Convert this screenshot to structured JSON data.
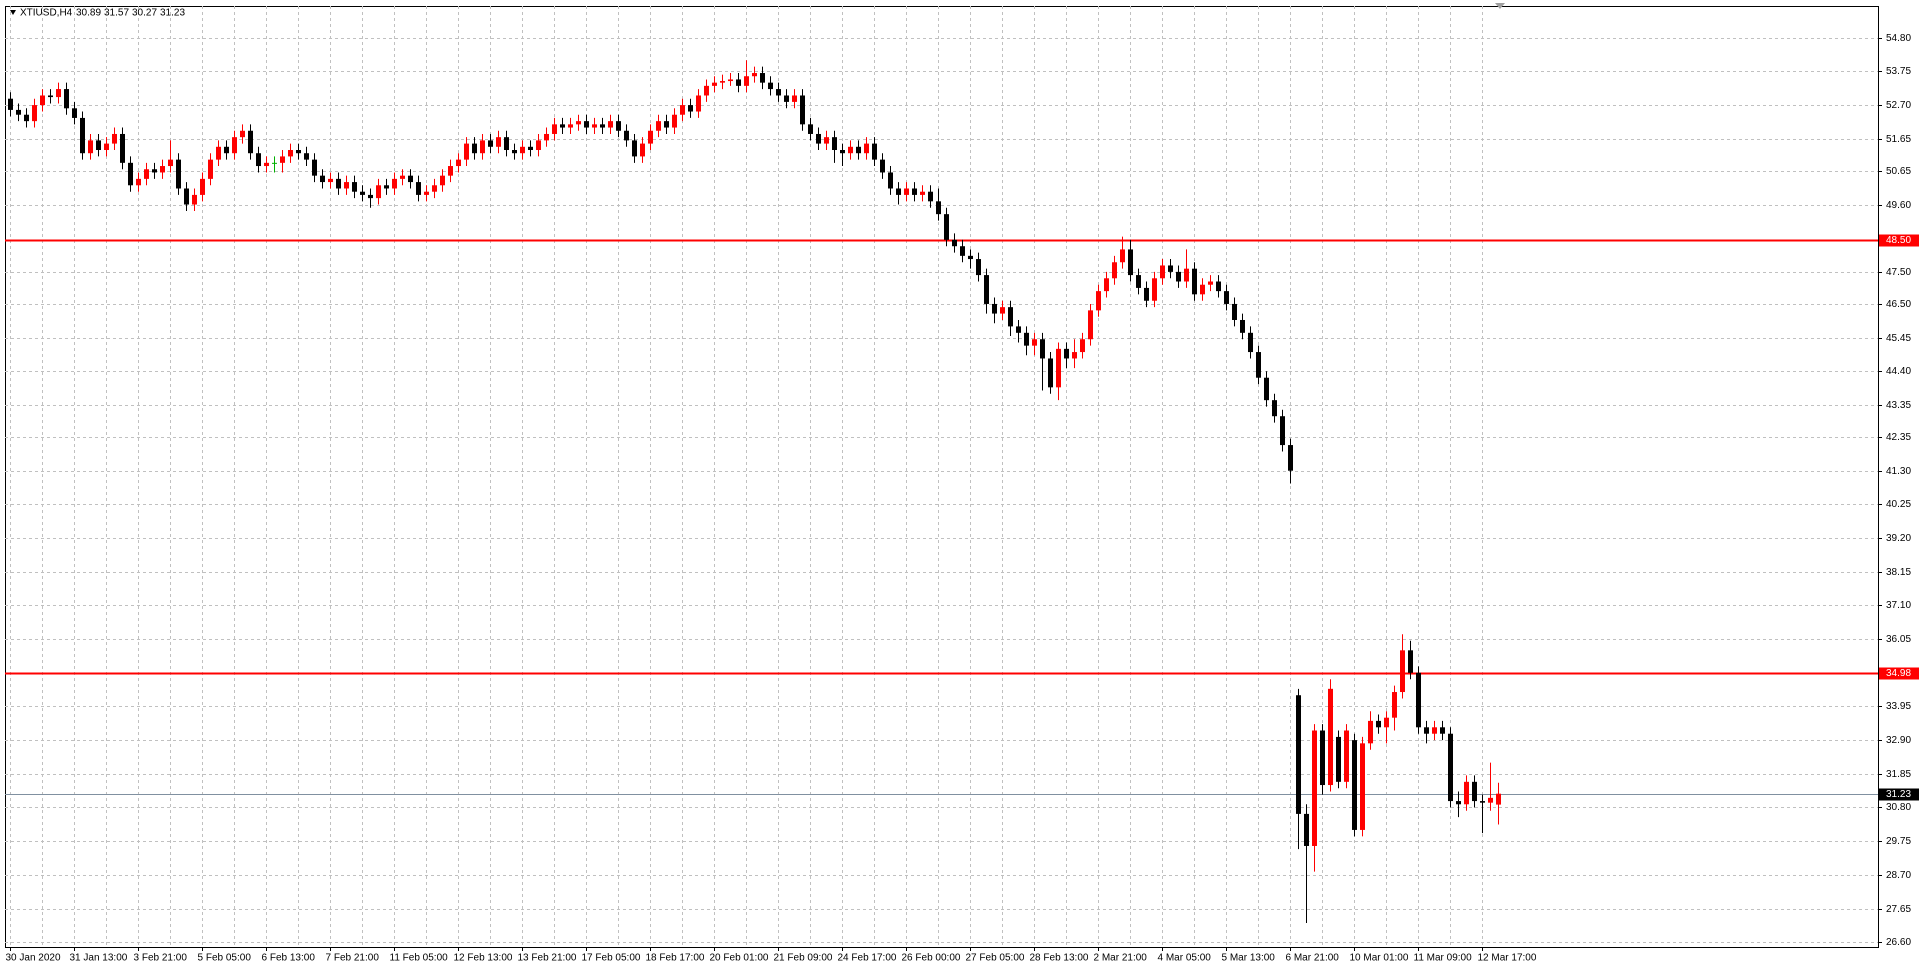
{
  "chart_data": {
    "type": "candlestick",
    "symbol": "XTIUSD,H4",
    "up_color": "#ff0000",
    "down_color": "#000000",
    "doji_color": "#00b000",
    "grid": true,
    "ylim": [
      26.45,
      55.79
    ],
    "yticks": [
      {
        "value": 54.8,
        "label": "54.80"
      },
      53.75,
      {
        "value": 52.7,
        "label": "52.70"
      },
      51.65,
      50.65,
      {
        "value": 49.6,
        "label": "49.60"
      },
      {
        "value": 47.5,
        "label": "47.50"
      },
      {
        "value": 46.5,
        "label": "46.50"
      },
      45.45,
      {
        "value": 44.4,
        "label": "44.40"
      },
      43.35,
      42.35,
      {
        "value": 41.3,
        "label": "41.30"
      },
      40.25,
      {
        "value": 39.2,
        "label": "39.20"
      },
      38.15,
      {
        "value": 37.1,
        "label": "37.10"
      },
      36.05,
      33.95,
      {
        "value": 32.9,
        "label": "32.90"
      },
      31.85,
      {
        "value": 30.8,
        "label": "30.80"
      },
      29.75,
      {
        "value": 28.7,
        "label": "28.70"
      },
      27.65,
      {
        "value": 26.6,
        "label": "26.60"
      }
    ],
    "levels": [
      {
        "value": 48.5,
        "label": "48.50",
        "color": "#ff0000"
      },
      {
        "value": 34.98,
        "label": "34.98",
        "color": "#ff0000"
      }
    ],
    "categories": [
      "30 Jan 2020",
      null,
      null,
      null,
      null,
      null,
      null,
      null,
      "31 Jan 13:00",
      null,
      null,
      null,
      null,
      null,
      null,
      null,
      "3 Feb 21:00",
      null,
      null,
      null,
      null,
      null,
      null,
      null,
      "5 Feb 05:00",
      null,
      null,
      null,
      null,
      null,
      null,
      null,
      "6 Feb 13:00",
      null,
      null,
      null,
      null,
      null,
      null,
      null,
      "7 Feb 21:00",
      null,
      null,
      null,
      null,
      null,
      null,
      null,
      "11 Feb 05:00",
      null,
      null,
      null,
      null,
      null,
      null,
      null,
      "12 Feb 13:00",
      null,
      null,
      null,
      null,
      null,
      null,
      null,
      "13 Feb 21:00",
      null,
      null,
      null,
      null,
      null,
      null,
      null,
      "17 Feb 05:00",
      null,
      null,
      null,
      null,
      null,
      null,
      null,
      "18 Feb 17:00",
      null,
      null,
      null,
      null,
      null,
      null,
      null,
      "20 Feb 01:00",
      null,
      null,
      null,
      null,
      null,
      null,
      null,
      "21 Feb 09:00",
      null,
      null,
      null,
      null,
      null,
      null,
      null,
      "24 Feb 17:00",
      null,
      null,
      null,
      null,
      null,
      null,
      null,
      "26 Feb 00:00",
      null,
      null,
      null,
      null,
      null,
      null,
      null,
      "27 Feb 05:00",
      null,
      null,
      null,
      null,
      null,
      null,
      null,
      "28 Feb 13:00",
      null,
      null,
      null,
      null,
      null,
      null,
      null,
      "2 Mar 21:00",
      null,
      null,
      null,
      null,
      null,
      null,
      null,
      "4 Mar 05:00",
      null,
      null,
      null,
      null,
      null,
      null,
      null,
      "5 Mar 13:00",
      null,
      null,
      null,
      null,
      null,
      null,
      null,
      "6 Mar 21:00",
      null,
      null,
      null,
      null,
      null,
      null,
      null,
      "10 Mar 01:00",
      null,
      null,
      null,
      null,
      null,
      null,
      null,
      "11 Mar 09:00",
      null,
      null,
      null,
      null,
      null,
      null,
      null,
      "12 Mar 17:00",
      null,
      null
    ],
    "open": [
      52.9,
      52.55,
      52.4,
      52.2,
      52.7,
      53.0,
      52.95,
      53.2,
      52.6,
      52.3,
      51.2,
      51.6,
      51.3,
      51.5,
      51.8,
      50.9,
      50.2,
      50.4,
      50.7,
      50.6,
      50.8,
      51.0,
      50.1,
      49.6,
      49.9,
      50.4,
      51.0,
      51.4,
      51.2,
      51.7,
      51.9,
      51.2,
      50.8,
      50.9,
      50.9,
      51.1,
      51.3,
      51.2,
      51.0,
      50.5,
      50.3,
      50.4,
      50.1,
      50.3,
      50.0,
      49.9,
      49.8,
      50.2,
      50.1,
      50.4,
      50.5,
      50.3,
      49.9,
      50.0,
      50.2,
      50.5,
      50.8,
      51.0,
      51.5,
      51.2,
      51.6,
      51.4,
      51.7,
      51.3,
      51.2,
      51.4,
      51.3,
      51.6,
      51.8,
      52.1,
      52.0,
      52.1,
      52.2,
      52.0,
      52.1,
      52.0,
      52.2,
      51.9,
      51.6,
      51.1,
      51.5,
      51.9,
      52.2,
      52.0,
      52.4,
      52.7,
      52.5,
      53.0,
      53.3,
      53.4,
      53.45,
      53.5,
      53.3,
      53.6,
      53.7,
      53.4,
      53.2,
      53.0,
      52.8,
      53.0,
      52.1,
      51.8,
      51.5,
      51.7,
      51.3,
      51.2,
      51.4,
      51.2,
      51.5,
      51.0,
      50.6,
      50.1,
      49.9,
      50.1,
      49.9,
      50.0,
      49.7,
      49.3,
      48.5,
      48.3,
      48.0,
      47.9,
      47.4,
      46.5,
      46.2,
      46.4,
      45.8,
      45.6,
      45.2,
      45.4,
      44.8,
      43.9,
      45.1,
      44.8,
      45.0,
      45.4,
      46.3,
      46.9,
      47.3,
      47.8,
      48.2,
      47.4,
      47.0,
      46.6,
      47.3,
      47.7,
      47.5,
      47.2,
      47.6,
      46.8,
      47.1,
      47.2,
      46.9,
      46.5,
      46.0,
      45.6,
      45.0,
      44.2,
      43.5,
      43.0,
      42.1,
      34.3,
      30.6,
      29.6,
      33.2,
      31.5,
      33.0,
      31.6,
      32.9,
      30.1,
      32.8,
      33.5,
      33.3,
      33.6,
      34.4,
      35.7,
      35.0,
      33.3,
      33.1,
      33.3,
      33.1,
      31.0,
      30.9,
      31.6,
      31.0,
      30.95,
      30.89
    ],
    "high": [
      53.1,
      52.75,
      52.6,
      52.9,
      53.2,
      53.2,
      53.4,
      53.4,
      52.8,
      52.5,
      51.8,
      51.8,
      51.7,
      52.0,
      52.0,
      51.1,
      50.6,
      50.9,
      50.9,
      51.0,
      51.6,
      51.2,
      50.3,
      50.1,
      50.6,
      51.2,
      51.6,
      51.6,
      51.9,
      52.1,
      52.1,
      51.4,
      51.1,
      51.1,
      51.3,
      51.5,
      51.5,
      51.4,
      51.2,
      50.7,
      50.6,
      50.6,
      50.5,
      50.5,
      50.2,
      50.1,
      50.4,
      50.4,
      50.6,
      50.7,
      50.7,
      50.5,
      50.2,
      50.4,
      50.7,
      51.0,
      51.2,
      51.7,
      51.7,
      51.8,
      51.8,
      51.9,
      51.9,
      51.5,
      51.6,
      51.6,
      51.8,
      52.0,
      52.3,
      52.3,
      52.3,
      52.4,
      52.4,
      52.3,
      52.3,
      52.4,
      52.4,
      52.1,
      51.8,
      51.7,
      52.1,
      52.4,
      52.4,
      52.6,
      52.9,
      52.9,
      53.2,
      53.5,
      53.6,
      53.65,
      53.7,
      53.7,
      54.1,
      53.9,
      53.9,
      53.6,
      53.4,
      53.2,
      53.2,
      53.2,
      52.3,
      52.0,
      51.9,
      51.9,
      51.5,
      51.6,
      51.6,
      51.7,
      51.7,
      51.2,
      50.8,
      50.3,
      50.3,
      50.3,
      50.2,
      50.2,
      50.1,
      49.5,
      48.7,
      48.5,
      48.2,
      48.1,
      47.6,
      46.7,
      46.6,
      46.6,
      46.0,
      45.8,
      45.6,
      45.6,
      45.0,
      45.3,
      45.3,
      45.4,
      45.6,
      46.5,
      47.1,
      47.5,
      48.0,
      48.6,
      48.5,
      47.6,
      47.2,
      47.5,
      47.9,
      47.9,
      47.7,
      48.2,
      47.8,
      47.3,
      47.4,
      47.4,
      47.1,
      46.7,
      46.2,
      45.8,
      45.2,
      44.4,
      43.7,
      43.2,
      42.3,
      34.5,
      30.9,
      33.4,
      33.4,
      34.8,
      33.2,
      33.4,
      33.1,
      33.0,
      33.8,
      33.7,
      33.8,
      34.6,
      36.2,
      36.0,
      35.2,
      33.5,
      33.5,
      33.5,
      33.3,
      31.3,
      31.8,
      31.8,
      31.2,
      32.2,
      31.57
    ],
    "low": [
      52.35,
      52.2,
      52.0,
      52.0,
      52.5,
      52.75,
      52.75,
      52.4,
      52.1,
      51.0,
      51.0,
      51.1,
      51.1,
      51.3,
      50.7,
      50.0,
      50.0,
      50.2,
      50.4,
      50.4,
      50.6,
      49.9,
      49.4,
      49.4,
      49.7,
      50.2,
      50.8,
      51.0,
      51.0,
      51.5,
      51.0,
      50.6,
      50.6,
      50.6,
      50.6,
      50.9,
      51.0,
      50.8,
      50.3,
      50.1,
      50.1,
      49.9,
      49.9,
      49.8,
      49.7,
      49.5,
      49.6,
      49.9,
      49.9,
      50.2,
      50.1,
      49.7,
      49.7,
      49.8,
      50.0,
      50.3,
      50.6,
      50.8,
      51.0,
      51.0,
      51.2,
      51.2,
      51.1,
      51.0,
      51.0,
      51.1,
      51.1,
      51.4,
      51.6,
      51.8,
      51.8,
      51.9,
      51.8,
      51.8,
      51.8,
      51.8,
      51.7,
      51.4,
      50.9,
      50.9,
      51.3,
      51.7,
      51.8,
      51.8,
      52.2,
      52.3,
      52.3,
      52.8,
      53.1,
      53.2,
      53.3,
      53.1,
      53.1,
      53.4,
      53.2,
      53.0,
      52.8,
      52.6,
      52.6,
      51.9,
      51.6,
      51.3,
      51.3,
      50.9,
      50.8,
      51.0,
      51.0,
      51.0,
      50.8,
      50.4,
      49.9,
      49.6,
      49.7,
      49.7,
      49.7,
      49.5,
      49.1,
      48.3,
      48.1,
      47.8,
      47.6,
      47.2,
      46.2,
      45.9,
      46.0,
      45.5,
      45.3,
      44.9,
      44.9,
      43.8,
      43.7,
      43.5,
      44.5,
      44.5,
      44.8,
      45.2,
      46.1,
      46.7,
      47.1,
      47.6,
      47.2,
      46.8,
      46.4,
      46.4,
      47.1,
      47.3,
      47.0,
      47.0,
      46.6,
      46.6,
      46.9,
      46.7,
      46.3,
      45.8,
      45.4,
      44.8,
      44.0,
      43.3,
      42.8,
      41.9,
      40.9,
      29.5,
      27.2,
      28.8,
      31.2,
      31.3,
      31.4,
      31.4,
      29.9,
      29.9,
      32.6,
      33.1,
      32.8,
      33.2,
      34.2,
      34.8,
      33.1,
      32.8,
      32.9,
      32.9,
      30.8,
      30.5,
      30.7,
      30.8,
      30.0,
      30.7,
      30.27
    ],
    "close": [
      52.55,
      52.4,
      52.2,
      52.7,
      53.0,
      52.95,
      53.2,
      52.6,
      52.3,
      51.2,
      51.6,
      51.3,
      51.5,
      51.8,
      50.9,
      50.2,
      50.4,
      50.7,
      50.6,
      50.8,
      51.0,
      50.1,
      49.6,
      49.9,
      50.4,
      51.0,
      51.4,
      51.2,
      51.7,
      51.9,
      51.2,
      50.8,
      50.9,
      50.9,
      51.1,
      51.3,
      51.2,
      51.0,
      50.5,
      50.3,
      50.4,
      50.1,
      50.3,
      50.0,
      49.9,
      49.8,
      50.2,
      50.1,
      50.4,
      50.5,
      50.3,
      49.9,
      50.0,
      50.2,
      50.5,
      50.8,
      51.0,
      51.5,
      51.2,
      51.6,
      51.4,
      51.7,
      51.3,
      51.2,
      51.4,
      51.3,
      51.6,
      51.8,
      52.1,
      52.0,
      52.1,
      52.2,
      52.0,
      52.1,
      52.0,
      52.2,
      51.9,
      51.6,
      51.1,
      51.5,
      51.9,
      52.2,
      52.0,
      52.4,
      52.7,
      52.5,
      53.0,
      53.3,
      53.4,
      53.45,
      53.5,
      53.3,
      53.6,
      53.7,
      53.4,
      53.2,
      53.0,
      52.8,
      53.0,
      52.1,
      51.8,
      51.5,
      51.7,
      51.3,
      51.2,
      51.4,
      51.2,
      51.5,
      51.0,
      50.6,
      50.1,
      49.9,
      50.1,
      49.9,
      50.0,
      49.7,
      49.3,
      48.5,
      48.3,
      48.0,
      47.9,
      47.4,
      46.5,
      46.2,
      46.4,
      45.8,
      45.6,
      45.2,
      45.4,
      44.8,
      43.9,
      45.1,
      44.8,
      45.0,
      45.4,
      46.3,
      46.9,
      47.3,
      47.8,
      48.2,
      47.4,
      47.0,
      46.6,
      47.3,
      47.7,
      47.5,
      47.2,
      47.6,
      46.8,
      47.1,
      47.2,
      46.9,
      46.5,
      46.0,
      45.6,
      45.0,
      44.2,
      43.5,
      43.0,
      42.1,
      41.3,
      30.6,
      29.6,
      33.2,
      31.5,
      34.5,
      31.6,
      33.2,
      30.1,
      32.8,
      33.5,
      33.3,
      33.6,
      34.4,
      35.7,
      35.0,
      33.3,
      33.1,
      33.3,
      33.1,
      31.0,
      30.9,
      31.6,
      31.0,
      30.95,
      31.1,
      31.23
    ]
  }
}
